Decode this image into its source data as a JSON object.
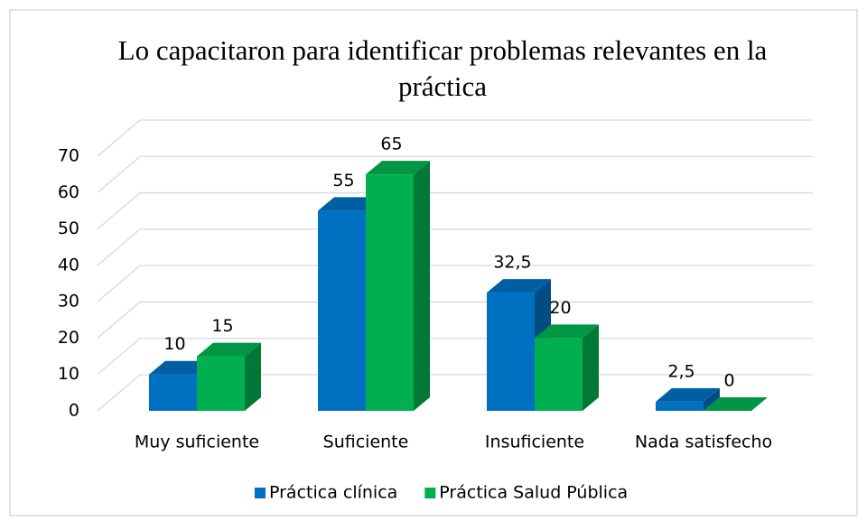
{
  "chart_data": {
    "type": "bar3d",
    "title": "Lo capacitaron para identificar problemas relevantes en la práctica",
    "categories": [
      "Muy suficiente",
      "Suficiente",
      "Insuficiente",
      "Nada satisfecho"
    ],
    "series": [
      {
        "name": "Práctica clínica",
        "color": "#0070c0",
        "values": [
          10,
          55,
          32.5,
          2.5
        ],
        "value_labels": [
          "10",
          "55",
          "32,5",
          "2,5"
        ]
      },
      {
        "name": "Práctica Salud Pública",
        "color": "#00b050",
        "values": [
          15,
          65,
          20,
          0
        ]
      }
    ],
    "ylim": [
      0,
      70
    ],
    "yticks": [
      0,
      10,
      20,
      30,
      40,
      50,
      60,
      70
    ],
    "grid": true,
    "legend": "bottom"
  }
}
